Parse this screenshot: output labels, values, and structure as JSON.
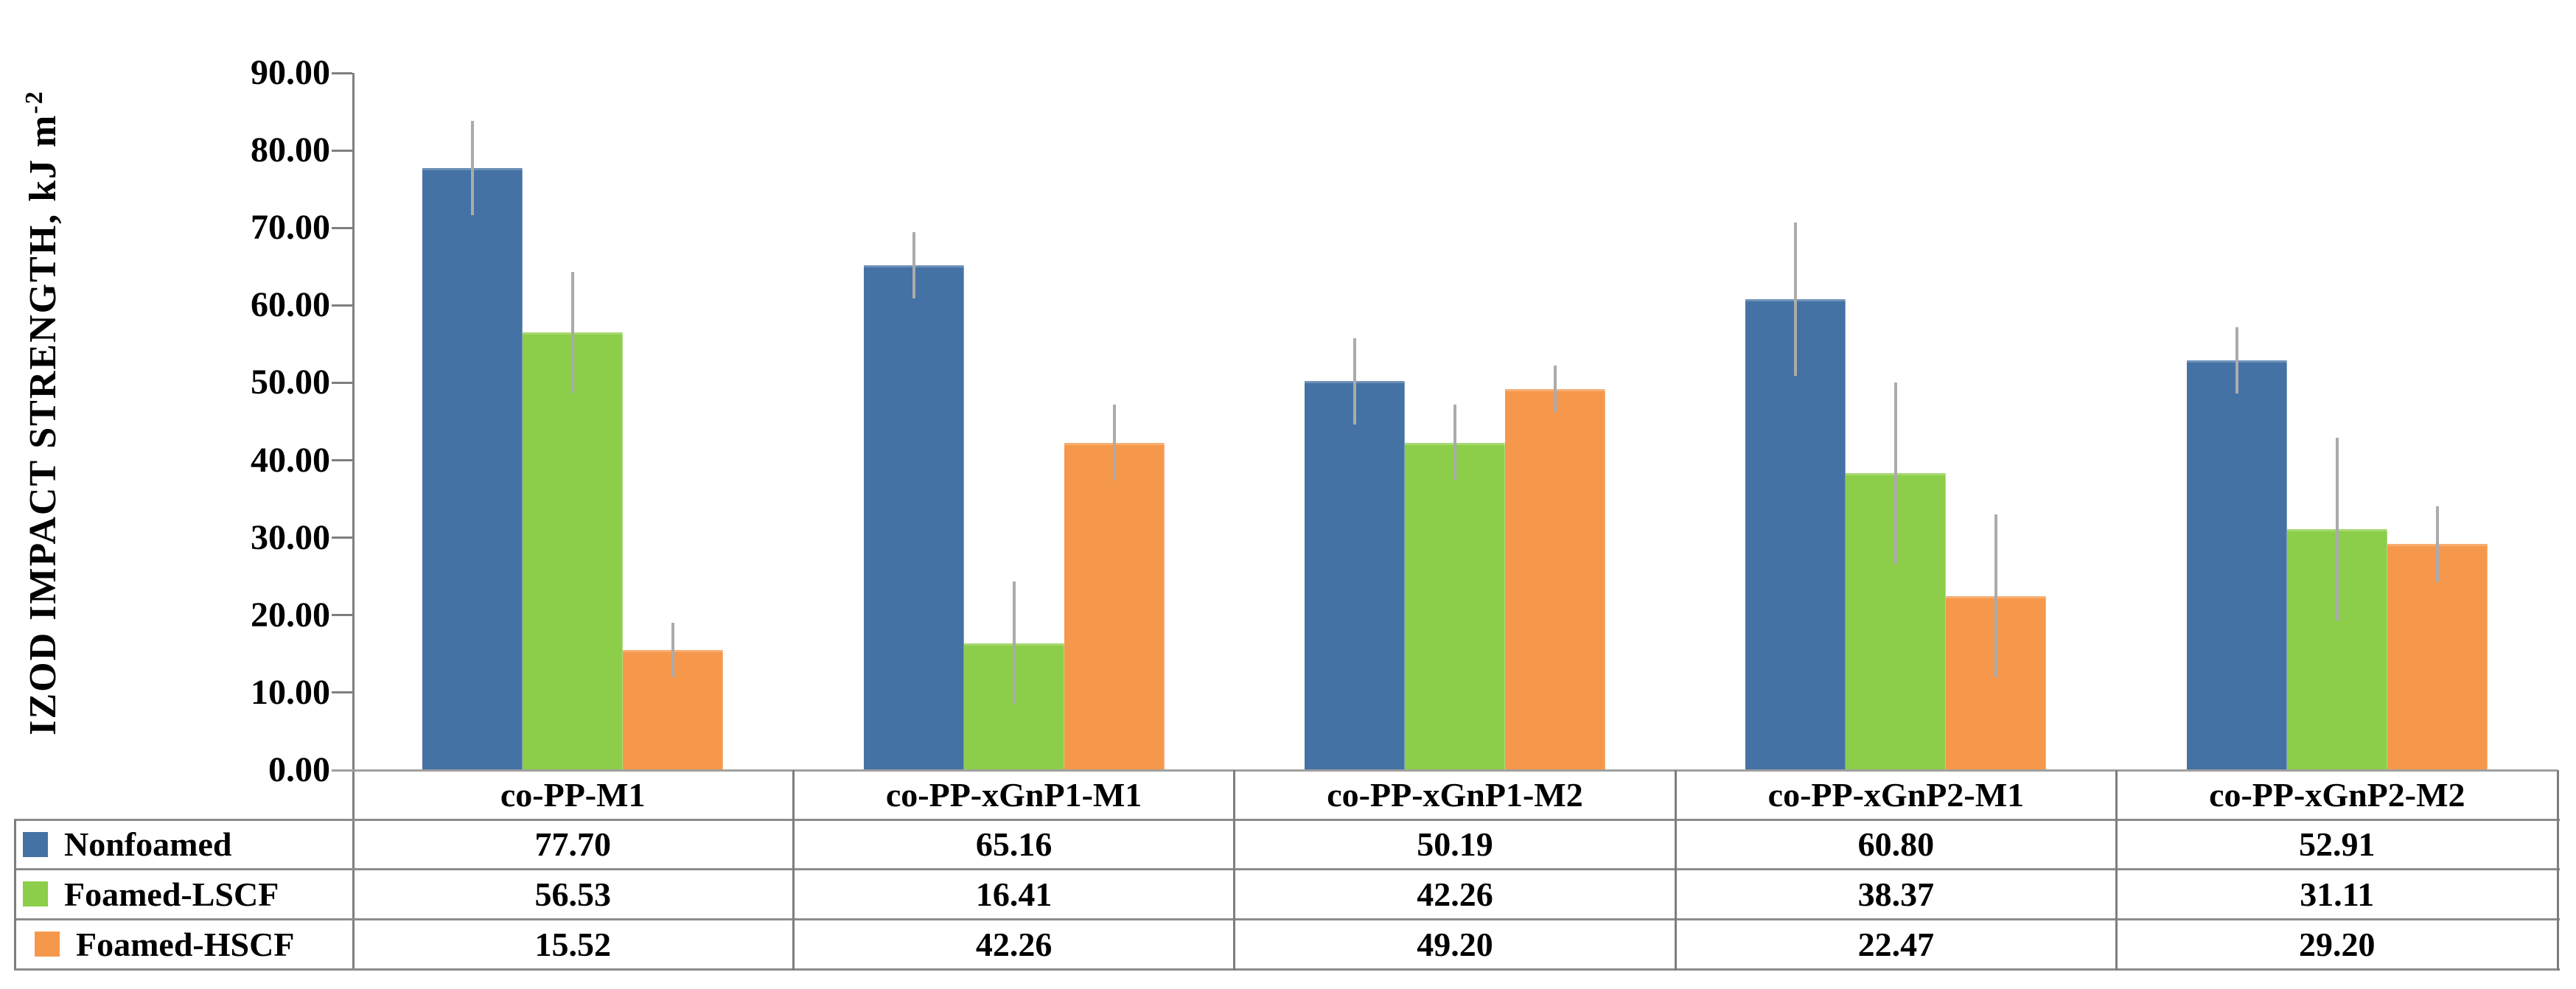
{
  "figure": {
    "background": "#FFFFFF"
  },
  "chart_data": {
    "type": "bar",
    "title": "",
    "ylabel": "IZOD IMPACT STRENGTH, kJ m-2",
    "ylabel_main": "IZOD IMPACT STRENGTH, kJ m",
    "ylabel_sup": "-2",
    "xlabel": "",
    "categories": [
      "co-PP-M1",
      "co-PP-xGnP1-M1",
      "co-PP-xGnP1-M2",
      "co-PP-xGnP2-M1",
      "co-PP-xGnP2-M2"
    ],
    "series": [
      {
        "name": "Nonfoamed",
        "color": "#4472A4",
        "values": [
          77.7,
          65.16,
          50.19,
          60.8,
          52.91
        ],
        "errors_plus_minus": [
          6.1,
          4.3,
          5.6,
          9.9,
          4.3
        ]
      },
      {
        "name": "Foamed-LSCF",
        "color": "#8CCE4A",
        "values": [
          56.53,
          16.41,
          42.26,
          38.37,
          31.11
        ],
        "errors_plus_minus": [
          7.8,
          7.9,
          4.9,
          11.7,
          11.8
        ]
      },
      {
        "name": "Foamed-HSCF",
        "color": "#F6984B",
        "values": [
          15.52,
          42.26,
          49.2,
          22.47,
          29.2
        ],
        "errors_plus_minus": [
          3.5,
          4.9,
          3.0,
          10.5,
          4.9
        ]
      }
    ],
    "y_axis": {
      "min": 0,
      "max": 90,
      "step": 10,
      "tick_labels": [
        "0.00",
        "10.00",
        "20.00",
        "30.00",
        "40.00",
        "50.00",
        "60.00",
        "70.00",
        "80.00",
        "90.00"
      ]
    },
    "ylim": [
      0,
      90
    ],
    "grid": false,
    "error_bars": true,
    "error_bar_color": "#ABABAB",
    "legend_position": "table-left"
  },
  "table": {
    "header_cells": [
      "co-PP-M1",
      "co-PP-xGnP1-M1",
      "co-PP-xGnP1-M2",
      "co-PP-xGnP2-M1",
      "co-PP-xGnP2-M2"
    ],
    "rows": [
      {
        "label": "Nonfoamed",
        "swatch_color": "#4472A4",
        "values": [
          "77.70",
          "65.16",
          "50.19",
          "60.80",
          "52.91"
        ]
      },
      {
        "label": "Foamed-LSCF",
        "swatch_color": "#8CCE4A",
        "values": [
          "56.53",
          "16.41",
          "42.26",
          "38.37",
          "31.11"
        ]
      },
      {
        "label": "Foamed-HSCF",
        "swatch_color": "#F6984B",
        "values": [
          "15.52",
          "42.26",
          "49.20",
          "22.47",
          "29.20"
        ]
      }
    ],
    "border_color_h": "#8C8C8C",
    "border_color_v": "#7D7D7D"
  },
  "colors": {
    "axis": "#7F7F7F",
    "baseline": "#A0A0A0",
    "text": "#000000"
  }
}
